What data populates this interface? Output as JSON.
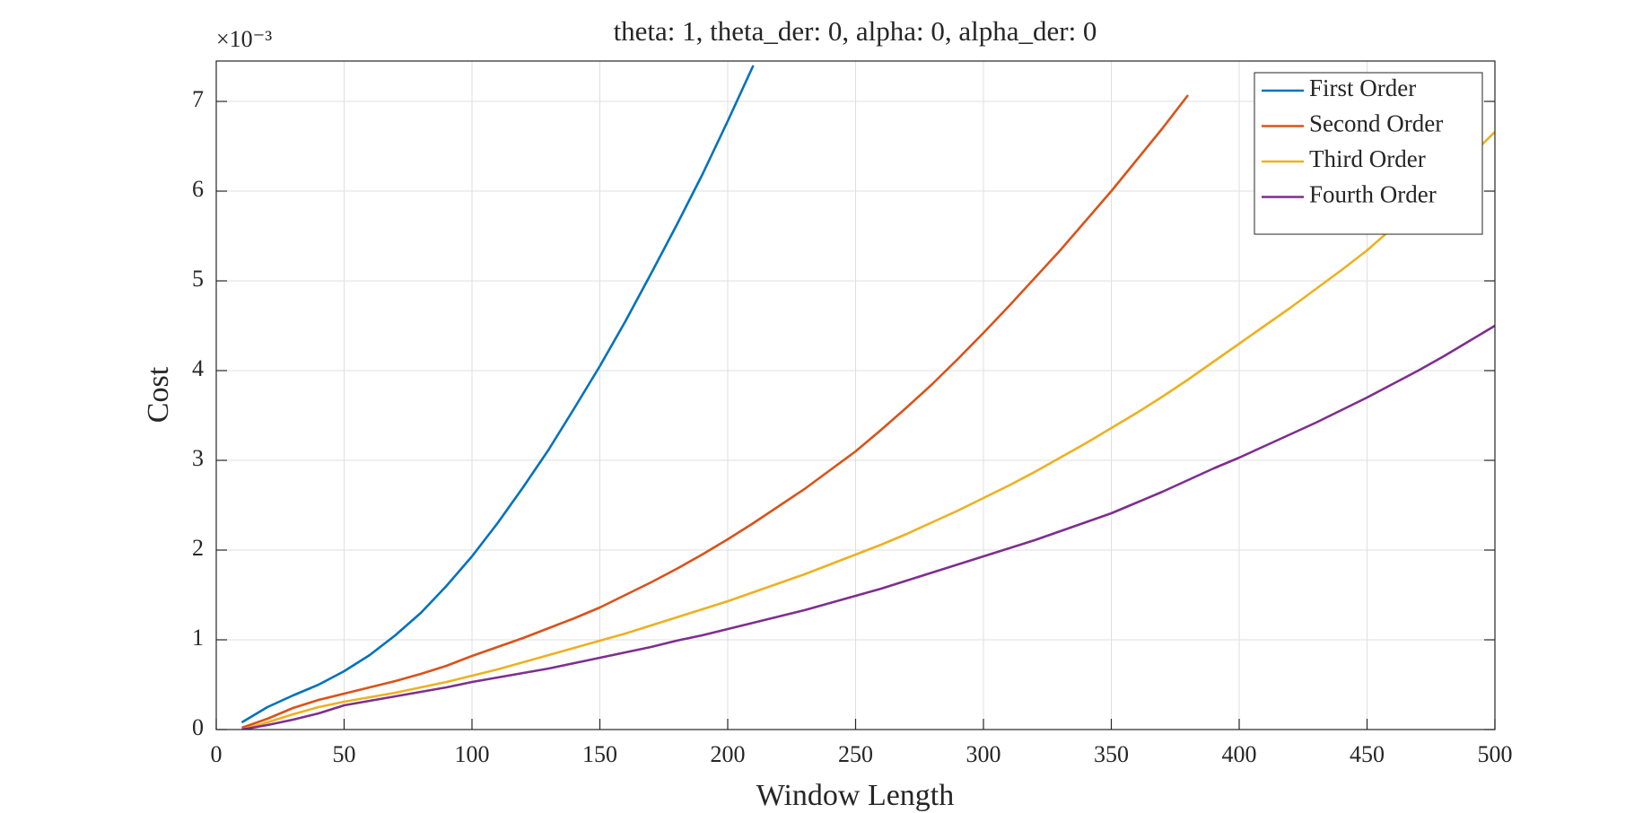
{
  "chart_data": {
    "type": "line",
    "title": "theta: 1, theta_der: 0, alpha: 0, alpha_der: 0",
    "xlabel": "Window Length",
    "ylabel": "Cost",
    "y_exponent_label": "×10⁻³",
    "x": [
      10,
      20,
      30,
      40,
      50,
      60,
      70,
      80,
      90,
      100,
      110,
      120,
      130,
      140,
      150,
      160,
      170,
      180,
      190,
      200,
      210,
      220,
      230,
      240,
      250,
      260,
      270,
      280,
      290,
      300,
      310,
      320,
      330,
      340,
      350,
      360,
      370,
      380,
      390,
      400,
      410,
      420,
      430,
      440,
      450,
      460,
      470,
      480,
      490,
      500
    ],
    "series": [
      {
        "name": "First Order",
        "color": "#0072BD",
        "values": [
          0.08,
          0.25,
          0.38,
          0.5,
          0.65,
          0.83,
          1.05,
          1.3,
          1.6,
          1.93,
          2.3,
          2.7,
          3.12,
          3.58,
          4.05,
          4.55,
          5.08,
          5.62,
          6.18,
          6.78,
          7.4,
          null,
          null,
          null,
          null,
          null,
          null,
          null,
          null,
          null,
          null,
          null,
          null,
          null,
          null,
          null,
          null,
          null,
          null,
          null,
          null,
          null,
          null,
          null,
          null,
          null,
          null,
          null,
          null,
          null
        ]
      },
      {
        "name": "Second Order",
        "color": "#D95319",
        "values": [
          0.02,
          0.12,
          0.24,
          0.33,
          0.4,
          0.47,
          0.54,
          0.62,
          0.71,
          0.82,
          0.92,
          1.02,
          1.13,
          1.24,
          1.36,
          1.5,
          1.64,
          1.79,
          1.95,
          2.12,
          2.3,
          2.49,
          2.68,
          2.89,
          3.1,
          3.34,
          3.59,
          3.85,
          4.13,
          4.42,
          4.72,
          5.03,
          5.34,
          5.67,
          6.0,
          6.35,
          6.7,
          7.07,
          null,
          null,
          null,
          null,
          null,
          null,
          null,
          null,
          null,
          null,
          null,
          null
        ]
      },
      {
        "name": "Third Order",
        "color": "#EDB120",
        "values": [
          0.0,
          0.08,
          0.17,
          0.25,
          0.31,
          0.36,
          0.41,
          0.47,
          0.53,
          0.6,
          0.67,
          0.75,
          0.83,
          0.91,
          0.99,
          1.07,
          1.16,
          1.25,
          1.34,
          1.43,
          1.53,
          1.63,
          1.73,
          1.84,
          1.95,
          2.06,
          2.18,
          2.31,
          2.44,
          2.58,
          2.72,
          2.87,
          3.03,
          3.19,
          3.36,
          3.53,
          3.71,
          3.9,
          4.1,
          4.3,
          4.5,
          4.7,
          4.91,
          5.12,
          5.34,
          5.59,
          5.84,
          6.1,
          6.38,
          6.66
        ]
      },
      {
        "name": "Fourth Order",
        "color": "#7E2F8E",
        "values": [
          0.0,
          0.05,
          0.11,
          0.18,
          0.27,
          0.32,
          0.37,
          0.42,
          0.47,
          0.53,
          0.58,
          0.63,
          0.68,
          0.74,
          0.8,
          0.86,
          0.92,
          0.99,
          1.05,
          1.12,
          1.19,
          1.26,
          1.33,
          1.41,
          1.49,
          1.57,
          1.66,
          1.75,
          1.84,
          1.93,
          2.02,
          2.11,
          2.21,
          2.31,
          2.41,
          2.53,
          2.65,
          2.78,
          2.91,
          3.03,
          3.16,
          3.29,
          3.42,
          3.56,
          3.7,
          3.85,
          4.0,
          4.16,
          4.33,
          4.5
        ]
      }
    ],
    "xlim": [
      0,
      500
    ],
    "xticks": [
      0,
      50,
      100,
      150,
      200,
      250,
      300,
      350,
      400,
      450,
      500
    ],
    "ylim": [
      0,
      7.45
    ],
    "yticks": [
      0,
      1,
      2,
      3,
      4,
      5,
      6,
      7
    ],
    "grid": true,
    "legend": "upper-right"
  }
}
